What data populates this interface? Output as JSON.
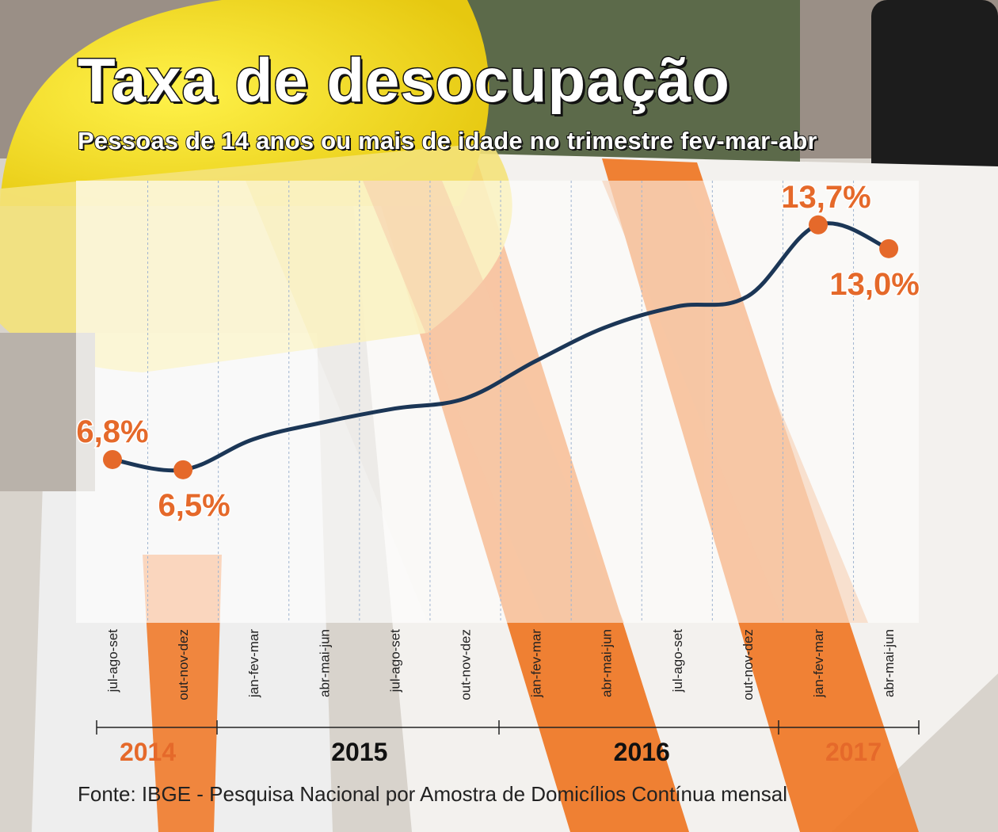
{
  "title": "Taxa de desocupação",
  "subtitle": "Pessoas de 14 anos ou mais de idade no trimestre fev-mar-abr",
  "source": "Fonte: IBGE - Pesquisa Nacional por Amostra de Domicílios Contínua mensal",
  "colors": {
    "line": "#1b3656",
    "marker": "#e5692a",
    "label_orange": "#e5692a",
    "label_dark": "#111111",
    "stripe": "#f5c7a6",
    "gridline": "#9fb4d0"
  },
  "chart_data": {
    "type": "line",
    "title": "Taxa de desocupação",
    "subtitle": "Pessoas de 14 anos ou mais de idade no trimestre fev-mar-abr",
    "categories": [
      "jul-ago-set",
      "out-nov-dez",
      "jan-fev-mar",
      "abr-mai-jun",
      "jul-ago-set",
      "out-nov-dez",
      "jan-fev-mar",
      "abr-mai-jun",
      "jul-ago-set",
      "out-nov-dez",
      "jan-fev-mar",
      "abr-mai-jun"
    ],
    "x": [
      0,
      1,
      2,
      3,
      4,
      5,
      6,
      7,
      8,
      9,
      10,
      11
    ],
    "y": [
      6.8,
      6.5,
      7.4,
      7.9,
      8.3,
      8.6,
      9.7,
      10.7,
      11.3,
      11.6,
      13.7,
      13.0
    ],
    "ylim": [
      2.0,
      15.0
    ],
    "grid": "vertical dashed",
    "years": [
      {
        "label": "2014",
        "from": 0,
        "to": 1,
        "color": "orange"
      },
      {
        "label": "2015",
        "from": 2,
        "to": 5,
        "color": "dark"
      },
      {
        "label": "2016",
        "from": 6,
        "to": 9,
        "color": "dark"
      },
      {
        "label": "2017",
        "from": 10,
        "to": 11,
        "color": "orange"
      }
    ],
    "annotations": [
      {
        "index": 0,
        "text": "6,8%",
        "pos": "above"
      },
      {
        "index": 1,
        "text": "6,5%",
        "pos": "below"
      },
      {
        "index": 10,
        "text": "13,7%",
        "pos": "above"
      },
      {
        "index": 11,
        "text": "13,0%",
        "pos": "below"
      }
    ]
  }
}
